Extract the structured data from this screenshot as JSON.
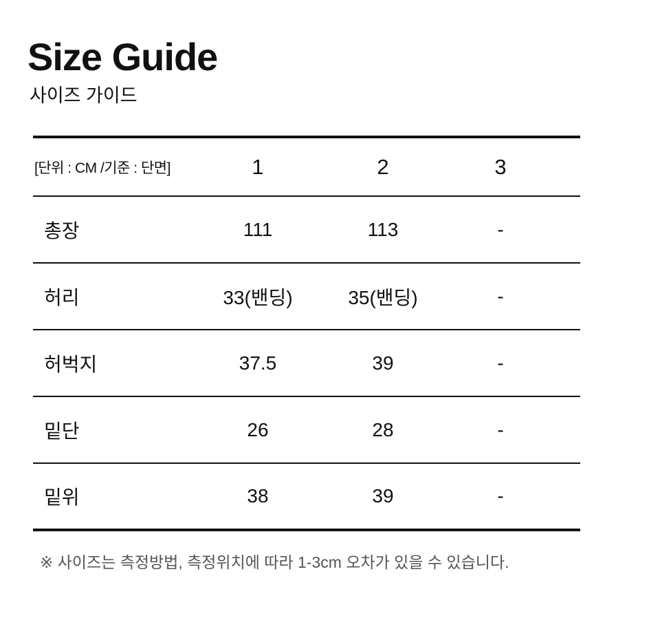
{
  "page": {
    "title": "Size Guide",
    "subtitle": "사이즈 가이드",
    "note": "※ 사이즈는 측정방법, 측정위치에 따라 1-3cm 오차가 있을 수 있습니다."
  },
  "table": {
    "unit_label": "[단위 : CM /기준 : 단면]",
    "columns": [
      "1",
      "2",
      "3"
    ],
    "rows": [
      {
        "label": "총장",
        "values": [
          "111",
          "113",
          "-"
        ]
      },
      {
        "label": "허리",
        "values": [
          "33(밴딩)",
          "35(밴딩)",
          "-"
        ]
      },
      {
        "label": "허벅지",
        "values": [
          "37.5",
          "39",
          "-"
        ]
      },
      {
        "label": "밑단",
        "values": [
          "26",
          "28",
          "-"
        ]
      },
      {
        "label": "밑위",
        "values": [
          "38",
          "39",
          "-"
        ]
      }
    ]
  },
  "colors": {
    "text": "#111111",
    "line": "#111111",
    "note_text": "#555555",
    "background": "#ffffff"
  }
}
